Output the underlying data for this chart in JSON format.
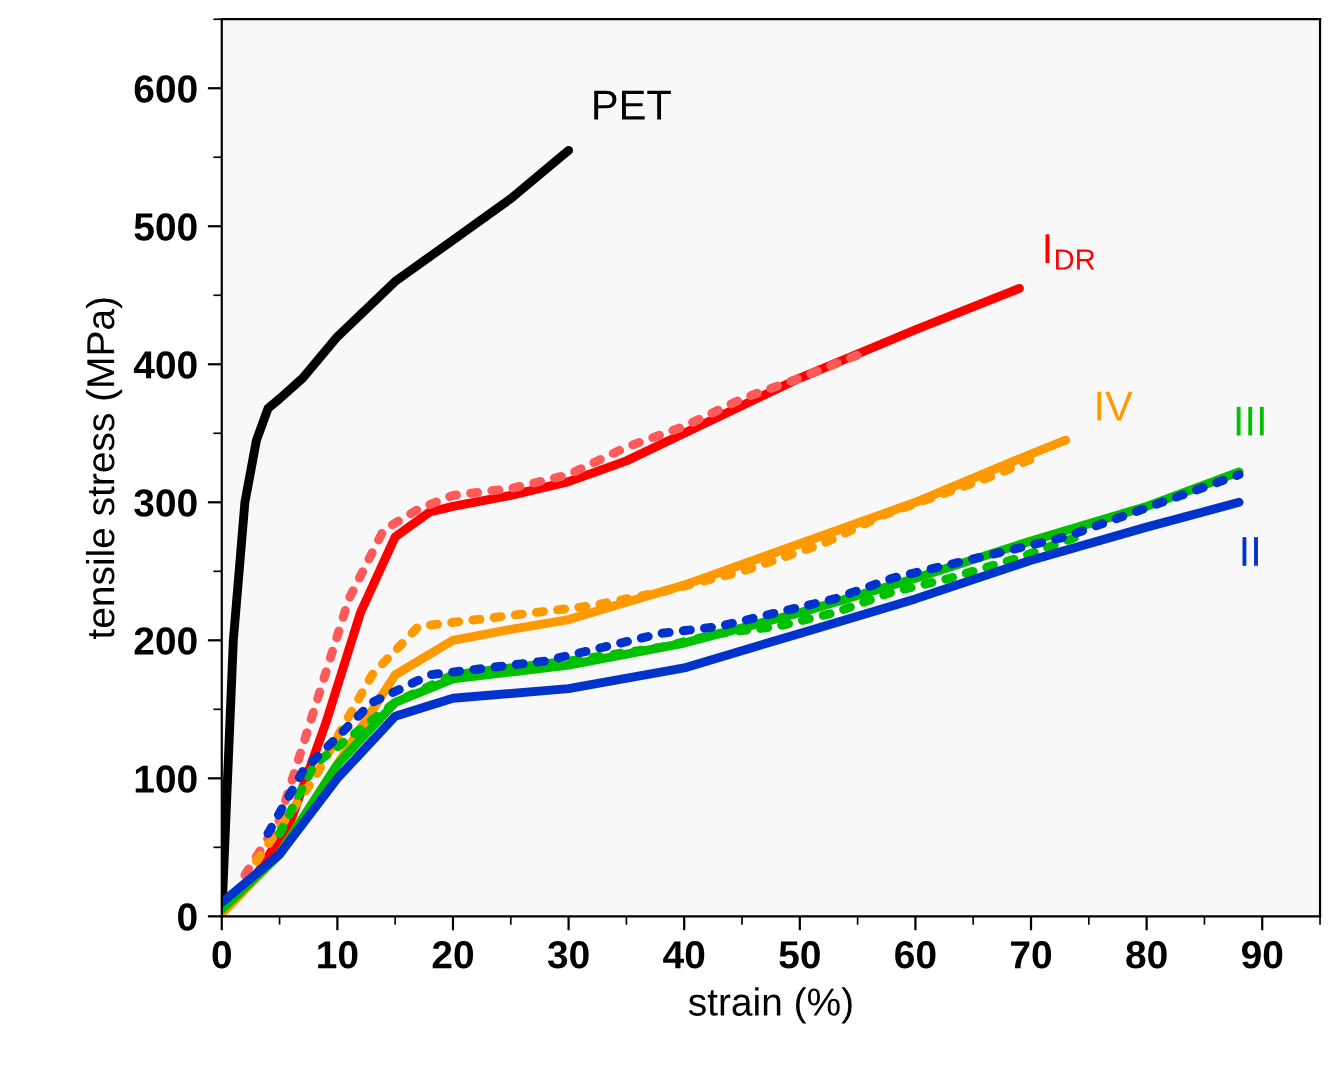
{
  "chart_data": {
    "type": "line",
    "xlabel": "strain (%)",
    "ylabel": "tensile stress (MPa)",
    "xlim": [
      0,
      95
    ],
    "xticks": [
      0,
      10,
      20,
      30,
      40,
      50,
      60,
      70,
      80,
      90
    ],
    "ylim": [
      0,
      650
    ],
    "yticks": [
      0,
      100,
      200,
      300,
      400,
      500,
      600
    ],
    "grid": false,
    "legend": false,
    "marker": "none",
    "series": [
      {
        "name": "PET",
        "color": "#000000",
        "line_style": "solid",
        "x": [
          0,
          1,
          2,
          3,
          4,
          5,
          7,
          10,
          15,
          20,
          25,
          30
        ],
        "values": [
          0,
          200,
          300,
          345,
          368,
          375,
          390,
          420,
          460,
          490,
          520,
          555
        ]
      },
      {
        "name": "I$_{DR}$",
        "color": "#ff0000",
        "line_style": "solid",
        "x": [
          3,
          6,
          9,
          12,
          15,
          18,
          20,
          25,
          30,
          35,
          40,
          50,
          60,
          69
        ],
        "values": [
          30,
          70,
          140,
          220,
          275,
          293,
          297,
          305,
          315,
          330,
          350,
          390,
          425,
          455
        ]
      },
      {
        "color": "#ff5a5a",
        "line_style": "dotted",
        "x": [
          2,
          5,
          8,
          11,
          14,
          17,
          20,
          25,
          30,
          35,
          40,
          45,
          50,
          56
        ],
        "values": [
          30,
          70,
          150,
          230,
          280,
          295,
          305,
          310,
          320,
          340,
          355,
          375,
          390,
          410
        ]
      },
      {
        "name": "IV",
        "color": "#ff9900",
        "line_style": "solid",
        "x": [
          0,
          5,
          10,
          15,
          20,
          25,
          30,
          40,
          50,
          60,
          70,
          73
        ],
        "values": [
          2,
          45,
          110,
          175,
          200,
          208,
          215,
          240,
          270,
          300,
          335,
          345
        ]
      },
      {
        "color": "#ff9900",
        "line_style": "dotted",
        "x": [
          3,
          8,
          13,
          17,
          22,
          27,
          32,
          38,
          45,
          52,
          57,
          62,
          67,
          71
        ],
        "values": [
          40,
          100,
          175,
          210,
          215,
          220,
          225,
          235,
          250,
          270,
          290,
          305,
          320,
          335
        ]
      },
      {
        "name": "III",
        "color": "#00c000",
        "line_style": "solid",
        "x": [
          0,
          5,
          10,
          15,
          20,
          25,
          30,
          40,
          50,
          60,
          70,
          80,
          88
        ],
        "values": [
          5,
          45,
          110,
          155,
          172,
          177,
          182,
          198,
          220,
          245,
          272,
          297,
          322
        ]
      },
      {
        "color": "#00c000",
        "line_style": "dotted",
        "x": [
          5,
          8,
          15,
          20,
          30,
          38,
          43,
          48,
          53,
          58,
          63,
          69,
          74
        ],
        "values": [
          60,
          110,
          155,
          175,
          185,
          195,
          205,
          210,
          220,
          235,
          245,
          260,
          275
        ]
      },
      {
        "name": "II",
        "color": "#0033cc",
        "line_style": "solid",
        "x": [
          0,
          5,
          10,
          15,
          20,
          30,
          40,
          50,
          60,
          70,
          80,
          88
        ],
        "values": [
          10,
          45,
          100,
          145,
          158,
          165,
          180,
          205,
          230,
          258,
          282,
          300
        ]
      },
      {
        "color": "#0033cc",
        "line_style": "dotted",
        "x": [
          4,
          7,
          10,
          13,
          18,
          23,
          28,
          33,
          38,
          43,
          48,
          53,
          58,
          63,
          68,
          73,
          78,
          83,
          88
        ],
        "values": [
          60,
          105,
          130,
          155,
          175,
          180,
          185,
          195,
          205,
          210,
          220,
          230,
          245,
          255,
          265,
          275,
          290,
          305,
          320
        ]
      }
    ]
  }
}
